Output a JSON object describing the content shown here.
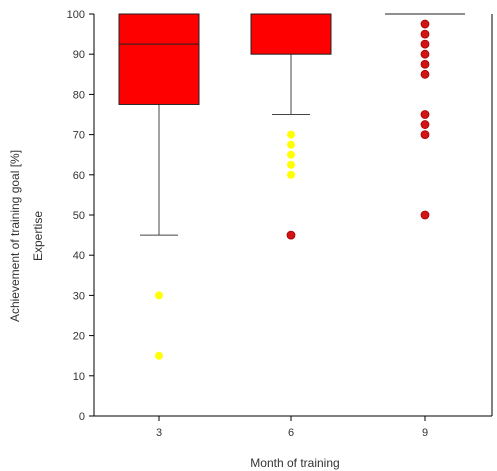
{
  "chart_data": {
    "type": "boxplot",
    "xlabel": "Month of training",
    "ylabel": "Achievement of training goal [%]",
    "ylabel2": "Expertise",
    "ylim": [
      0,
      100
    ],
    "yticks": [
      "0",
      "10",
      "20",
      "30",
      "40",
      "50",
      "60",
      "70",
      "80",
      "90",
      "100"
    ],
    "categories": [
      "3",
      "6",
      "9"
    ],
    "box_color": "#ff0000",
    "groups": [
      {
        "category": "3",
        "whisker_low": 45,
        "q1": 77.5,
        "median": 92.5,
        "q3": 100,
        "whisker_high": 100,
        "outliers": [
          {
            "value": 30,
            "color": "#ffff00"
          },
          {
            "value": 15,
            "color": "#ffff00"
          }
        ]
      },
      {
        "category": "6",
        "whisker_low": 75,
        "q1": 90,
        "median": 100,
        "q3": 100,
        "whisker_high": 100,
        "outliers": [
          {
            "value": 70,
            "color": "#ffff00"
          },
          {
            "value": 67.5,
            "color": "#ffff00"
          },
          {
            "value": 65,
            "color": "#ffff00"
          },
          {
            "value": 62.5,
            "color": "#ffff00"
          },
          {
            "value": 60,
            "color": "#ffff00"
          },
          {
            "value": 45,
            "color": "#d21414"
          }
        ]
      },
      {
        "category": "9",
        "whisker_low": 100,
        "q1": 100,
        "median": 100,
        "q3": 100,
        "whisker_high": 100,
        "outliers": [
          {
            "value": 97.5,
            "color": "#d21414"
          },
          {
            "value": 95,
            "color": "#d21414"
          },
          {
            "value": 92.5,
            "color": "#d21414"
          },
          {
            "value": 90,
            "color": "#d21414"
          },
          {
            "value": 87.5,
            "color": "#d21414"
          },
          {
            "value": 85,
            "color": "#d21414"
          },
          {
            "value": 75,
            "color": "#d21414"
          },
          {
            "value": 72.5,
            "color": "#d21414"
          },
          {
            "value": 70,
            "color": "#d21414"
          },
          {
            "value": 50,
            "color": "#d21414"
          }
        ]
      }
    ]
  }
}
